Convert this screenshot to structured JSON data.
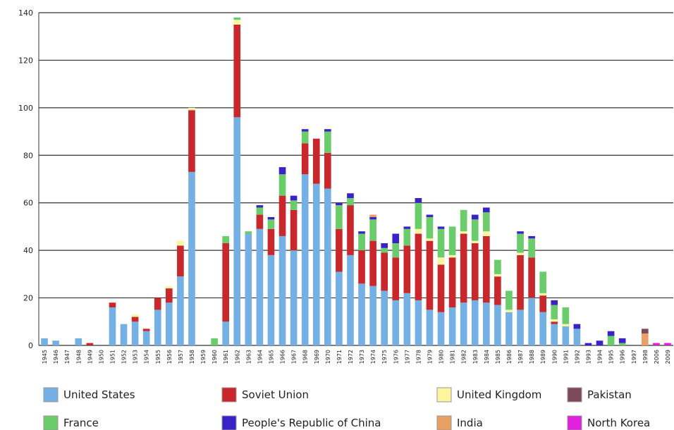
{
  "chart_data": {
    "type": "bar",
    "stacked": true,
    "categories": [
      "1945",
      "1946",
      "1947",
      "1948",
      "1949",
      "1950",
      "1951",
      "1952",
      "1953",
      "1954",
      "1955",
      "1956",
      "1957",
      "1958",
      "1959",
      "1960",
      "1961",
      "1962",
      "1963",
      "1964",
      "1965",
      "1966",
      "1967",
      "1968",
      "1969",
      "1970",
      "1971",
      "1972",
      "1973",
      "1974",
      "1975",
      "1976",
      "1977",
      "1978",
      "1979",
      "1980",
      "1981",
      "1982",
      "1983",
      "1984",
      "1985",
      "1986",
      "1987",
      "1988",
      "1989",
      "1990",
      "1991",
      "1992",
      "1993",
      "1994",
      "1995",
      "1996",
      "1997",
      "1998",
      "2006",
      "2009"
    ],
    "series": [
      {
        "name": "United States",
        "color": "#74b0e4",
        "values": [
          3,
          2,
          0,
          3,
          0,
          0,
          16,
          9,
          10,
          6,
          15,
          18,
          29,
          73,
          0,
          0,
          10,
          96,
          47,
          49,
          38,
          46,
          40,
          72,
          68,
          66,
          31,
          38,
          26,
          25,
          23,
          19,
          22,
          19,
          15,
          14,
          16,
          18,
          19,
          18,
          17,
          14,
          15,
          20,
          14,
          9,
          8,
          7,
          0,
          0,
          0,
          0,
          0,
          0,
          0,
          0
        ]
      },
      {
        "name": "Soviet Union",
        "color": "#c8282c",
        "values": [
          0,
          0,
          0,
          0,
          1,
          0,
          2,
          0,
          2,
          1,
          5,
          6,
          13,
          26,
          0,
          0,
          33,
          39,
          0,
          6,
          11,
          17,
          17,
          13,
          19,
          15,
          18,
          21,
          14,
          19,
          16,
          18,
          20,
          28,
          29,
          20,
          21,
          29,
          24,
          28,
          12,
          0,
          23,
          17,
          7,
          1,
          0,
          0,
          0,
          0,
          0,
          0,
          0,
          0,
          0,
          0
        ]
      },
      {
        "name": "United Kingdom",
        "color": "#fbf5a0",
        "values": [
          0,
          0,
          0,
          0,
          0,
          0,
          0,
          0,
          1,
          0,
          0,
          1,
          2,
          1,
          0,
          0,
          0,
          2,
          0,
          0,
          0,
          0,
          0,
          0,
          0,
          0,
          0,
          0,
          0,
          0,
          0,
          0,
          0,
          2,
          1,
          3,
          1,
          1,
          1,
          2,
          1,
          1,
          1,
          0,
          1,
          1,
          1,
          0,
          0,
          0,
          0,
          0,
          0,
          0,
          0,
          0
        ]
      },
      {
        "name": "Pakistan",
        "color": "#7e4a5a",
        "values": [
          0,
          0,
          0,
          0,
          0,
          0,
          0,
          0,
          0,
          0,
          0,
          0,
          0,
          0,
          0,
          0,
          0,
          0,
          0,
          0,
          0,
          0,
          0,
          0,
          0,
          0,
          0,
          0,
          0,
          0,
          0,
          0,
          0,
          0,
          0,
          0,
          0,
          0,
          0,
          0,
          0,
          0,
          0,
          0,
          0,
          0,
          0,
          0,
          0,
          0,
          0,
          0,
          0,
          2,
          0,
          0
        ]
      },
      {
        "name": "France",
        "color": "#6acc6a",
        "values": [
          0,
          0,
          0,
          0,
          0,
          0,
          0,
          0,
          0,
          0,
          0,
          0,
          0,
          0,
          0,
          3,
          3,
          1,
          1,
          3,
          4,
          9,
          4,
          5,
          0,
          9,
          10,
          3,
          7,
          9,
          2,
          6,
          7,
          11,
          9,
          12,
          12,
          9,
          9,
          8,
          6,
          8,
          8,
          8,
          9,
          6,
          7,
          0,
          0,
          0,
          4,
          1,
          0,
          0,
          0,
          0
        ]
      },
      {
        "name": "People's Republic of China",
        "color": "#3a22c8",
        "values": [
          0,
          0,
          0,
          0,
          0,
          0,
          0,
          0,
          0,
          0,
          0,
          0,
          0,
          0,
          0,
          0,
          0,
          0,
          0,
          1,
          1,
          3,
          2,
          1,
          0,
          1,
          1,
          2,
          1,
          1,
          2,
          4,
          1,
          2,
          1,
          1,
          0,
          0,
          2,
          2,
          0,
          0,
          1,
          1,
          0,
          2,
          0,
          2,
          1,
          2,
          2,
          2,
          0,
          0,
          0,
          0
        ]
      },
      {
        "name": "India",
        "color": "#e8a064",
        "values": [
          0,
          0,
          0,
          0,
          0,
          0,
          0,
          0,
          0,
          0,
          0,
          0,
          0,
          0,
          0,
          0,
          0,
          0,
          0,
          0,
          0,
          0,
          0,
          0,
          0,
          0,
          0,
          0,
          0,
          1,
          0,
          0,
          0,
          0,
          0,
          0,
          0,
          0,
          0,
          0,
          0,
          0,
          0,
          0,
          0,
          0,
          0,
          0,
          0,
          0,
          0,
          0,
          0,
          5,
          0,
          0
        ]
      },
      {
        "name": "North Korea",
        "color": "#e020dc",
        "values": [
          0,
          0,
          0,
          0,
          0,
          0,
          0,
          0,
          0,
          0,
          0,
          0,
          0,
          0,
          0,
          0,
          0,
          0,
          0,
          0,
          0,
          0,
          0,
          0,
          0,
          0,
          0,
          0,
          0,
          0,
          0,
          0,
          0,
          0,
          0,
          0,
          0,
          0,
          0,
          0,
          0,
          0,
          0,
          0,
          0,
          0,
          0,
          0,
          0,
          0,
          0,
          0,
          0,
          0,
          1,
          1
        ]
      }
    ],
    "ylim": [
      0,
      140
    ],
    "yticks": [
      0,
      20,
      40,
      60,
      80,
      100,
      120,
      140
    ],
    "grid": true
  }
}
